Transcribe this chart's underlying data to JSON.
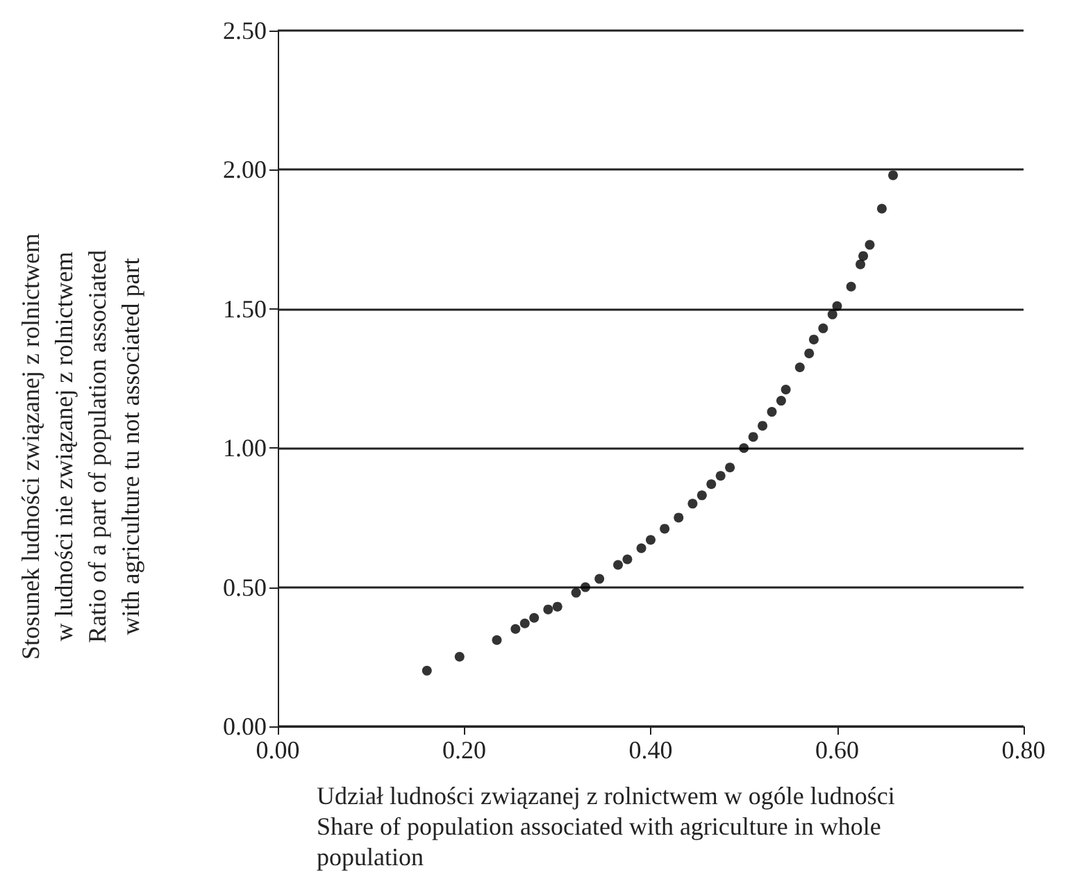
{
  "chart_data": {
    "type": "scatter",
    "xlabel": "Udział ludności związanej z rolnictwem w ogóle ludności\nShare of population associated with agriculture in whole\npopulation",
    "ylabel": "Stosunek ludności związanej z rolnictwem\nw ludności nie związanej z rolnictwem\nRatio of a part of population associated\nwith agriculture tu not associated part",
    "x": [
      0.16,
      0.195,
      0.235,
      0.255,
      0.265,
      0.275,
      0.29,
      0.3,
      0.32,
      0.33,
      0.345,
      0.365,
      0.375,
      0.39,
      0.4,
      0.415,
      0.43,
      0.445,
      0.455,
      0.465,
      0.475,
      0.485,
      0.5,
      0.51,
      0.52,
      0.53,
      0.54,
      0.545,
      0.56,
      0.57,
      0.575,
      0.585,
      0.595,
      0.6,
      0.615,
      0.625,
      0.628,
      0.635,
      0.648,
      0.66
    ],
    "values": [
      0.2,
      0.25,
      0.31,
      0.35,
      0.37,
      0.39,
      0.42,
      0.43,
      0.48,
      0.5,
      0.53,
      0.58,
      0.6,
      0.64,
      0.67,
      0.71,
      0.75,
      0.8,
      0.83,
      0.87,
      0.9,
      0.93,
      1.0,
      1.04,
      1.08,
      1.13,
      1.17,
      1.21,
      1.29,
      1.34,
      1.39,
      1.43,
      1.48,
      1.51,
      1.58,
      1.66,
      1.69,
      1.73,
      1.86,
      1.98
    ],
    "color": "#000000",
    "marker": "circle",
    "xlim": [
      0,
      0.8
    ],
    "xticks": [
      {
        "value": 0,
        "label": "0.00"
      },
      {
        "value": 0.2,
        "label": "0.20"
      },
      {
        "value": 0.4,
        "label": "0.40"
      },
      {
        "value": 0.6,
        "label": "0.60"
      },
      {
        "value": 0.8,
        "label": "0.80"
      }
    ],
    "ylim": [
      0,
      2.5
    ],
    "yticks": [
      {
        "value": 0,
        "label": "0.00"
      },
      {
        "value": 0.5,
        "label": "0.50"
      },
      {
        "value": 1,
        "label": "1.00"
      },
      {
        "value": 1.5,
        "label": "1.50"
      },
      {
        "value": 2,
        "label": "2.00"
      },
      {
        "value": 2.5,
        "label": "2.50"
      }
    ],
    "grid": "y"
  }
}
